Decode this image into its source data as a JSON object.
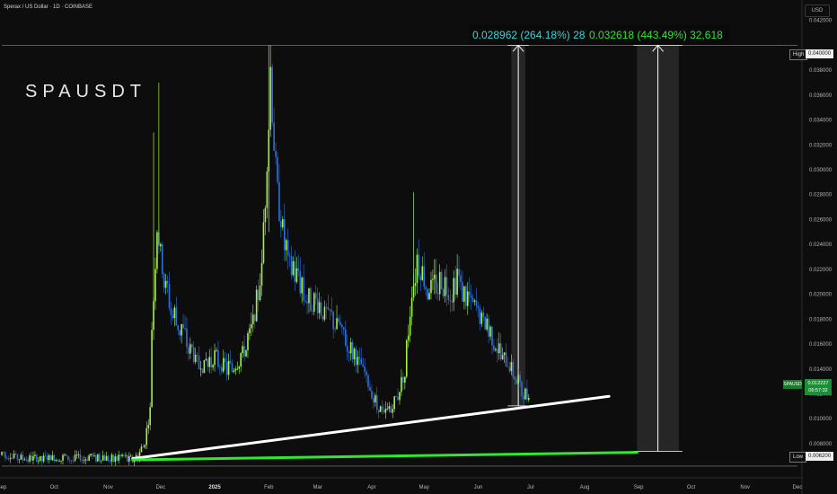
{
  "header": {
    "title": "Sperax / US Dollar · 1D · COINBASE",
    "currency": "USD",
    "watermark": "SPAUSDT"
  },
  "measure_boxes": [
    {
      "text": "0.028962 (264.18%) 28,",
      "color": "#35d6d6"
    },
    {
      "text": "0.032618 (443.49%) 32,618",
      "color": "#2ee62e"
    }
  ],
  "price_tags": {
    "high_label": "High",
    "high_value": "0.040000",
    "low_label": "Low",
    "low_value": "0.006200",
    "symbol": "SPAUSD",
    "last_price": "0.012227",
    "countdown": "06:57:32"
  },
  "colors": {
    "background": "#0d0d0d",
    "up": "#a4f243",
    "down": "#2f6fd6",
    "trend_white": "#ffffff",
    "trend_green": "#32e632",
    "measure_box": "#2b2b2b"
  },
  "chart_data": {
    "type": "candlestick",
    "title": "Sperax / US Dollar · 1D · COINBASE",
    "ylim": [
      0.0054,
      0.0432
    ],
    "y_ticks": [
      "0.042000",
      "0.040000",
      "0.038000",
      "0.036000",
      "0.034000",
      "0.032000",
      "0.030000",
      "0.028000",
      "0.026000",
      "0.024000",
      "0.022000",
      "0.020000",
      "0.018000",
      "0.016000",
      "0.014000",
      "0.012000",
      "0.010000",
      "0.008000",
      "0.006200"
    ],
    "x_ticks": [
      "Sep",
      "Oct",
      "Nov",
      "Dec",
      "2025",
      "Feb",
      "Mar",
      "Apr",
      "May",
      "Jun",
      "Jul",
      "Aug",
      "Sep",
      "Oct",
      "Nov",
      "Dec"
    ],
    "x_tick_dates": [
      "2024-09-01",
      "2024-10-01",
      "2024-11-01",
      "2024-12-01",
      "2025-01-01",
      "2025-02-01",
      "2025-03-01",
      "2025-04-01",
      "2025-05-01",
      "2025-06-01",
      "2025-07-01",
      "2025-08-01",
      "2025-09-01",
      "2025-10-01",
      "2025-11-01",
      "2025-12-01"
    ],
    "x_range": [
      "2024-09-01",
      "2025-12-01"
    ],
    "close_path": [
      [
        "2024-09-01",
        0.0071
      ],
      [
        "2024-09-20",
        0.0068
      ],
      [
        "2024-10-15",
        0.0069
      ],
      [
        "2024-11-10",
        0.0068
      ],
      [
        "2024-11-18",
        0.0068
      ],
      [
        "2024-11-22",
        0.0082
      ],
      [
        "2024-11-25",
        0.0105
      ],
      [
        "2024-11-26",
        0.0175
      ],
      [
        "2024-11-29",
        0.0255
      ],
      [
        "2024-12-03",
        0.021
      ],
      [
        "2024-12-08",
        0.0185
      ],
      [
        "2024-12-15",
        0.0165
      ],
      [
        "2024-12-20",
        0.015
      ],
      [
        "2024-12-25",
        0.0142
      ],
      [
        "2025-01-01",
        0.015
      ],
      [
        "2025-01-08",
        0.014
      ],
      [
        "2025-01-15",
        0.0145
      ],
      [
        "2025-01-22",
        0.017
      ],
      [
        "2025-01-28",
        0.022
      ],
      [
        "2025-02-02",
        0.037
      ],
      [
        "2025-02-06",
        0.028
      ],
      [
        "2025-02-12",
        0.0225
      ],
      [
        "2025-02-18",
        0.021
      ],
      [
        "2025-02-25",
        0.0195
      ],
      [
        "2025-03-05",
        0.0185
      ],
      [
        "2025-03-12",
        0.0175
      ],
      [
        "2025-03-20",
        0.0155
      ],
      [
        "2025-03-28",
        0.0135
      ],
      [
        "2025-04-03",
        0.0115
      ],
      [
        "2025-04-08",
        0.0102
      ],
      [
        "2025-04-15",
        0.0115
      ],
      [
        "2025-04-20",
        0.014
      ],
      [
        "2025-04-24",
        0.0205
      ],
      [
        "2025-04-27",
        0.0225
      ],
      [
        "2025-05-03",
        0.0205
      ],
      [
        "2025-05-10",
        0.021
      ],
      [
        "2025-05-17",
        0.02
      ],
      [
        "2025-05-20",
        0.0212
      ],
      [
        "2025-05-25",
        0.0195
      ],
      [
        "2025-06-01",
        0.0185
      ],
      [
        "2025-06-08",
        0.0168
      ],
      [
        "2025-06-15",
        0.0148
      ],
      [
        "2025-06-20",
        0.0142
      ],
      [
        "2025-06-24",
        0.013
      ],
      [
        "2025-06-27",
        0.0118
      ],
      [
        "2025-06-30",
        0.0122
      ]
    ],
    "lines": [
      {
        "name": "rising_trendline",
        "color": "#ffffff",
        "points": [
          [
            "2024-11-15",
            0.0068
          ],
          [
            "2025-08-15",
            0.0118
          ]
        ]
      },
      {
        "name": "base_trendline",
        "color": "#32e632",
        "points": [
          [
            "2024-11-15",
            0.0067
          ],
          [
            "2025-08-31",
            0.0073
          ]
        ]
      },
      {
        "name": "high_line",
        "color": "#888888",
        "points": [
          [
            "2024-09-01",
            0.04
          ],
          [
            "2025-12-01",
            0.04
          ]
        ]
      },
      {
        "name": "low_line",
        "color": "#888888",
        "points": [
          [
            "2024-09-01",
            0.0062
          ],
          [
            "2025-12-01",
            0.0062
          ]
        ]
      }
    ],
    "measures": [
      {
        "from_date": "2025-06-20",
        "to_date": "2025-06-28",
        "y_from": 0.011038,
        "y_to": 0.04,
        "label": "0.028962 (264.18%) 28,"
      },
      {
        "from_date": "2025-08-31",
        "to_date": "2025-09-24",
        "y_from": 0.007382,
        "y_to": 0.04,
        "label": "0.032618 (443.49%) 32,618"
      }
    ]
  }
}
